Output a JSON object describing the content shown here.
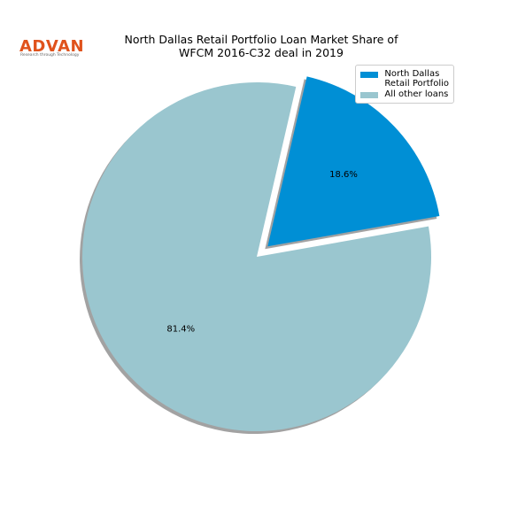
{
  "logo": {
    "name": "ADVAN",
    "tagline": "Research through Technology"
  },
  "chart_data": {
    "type": "pie",
    "title": "North Dallas Retail Portfolio Loan Market Share of\nWFCM 2016-C32 deal in 2019",
    "categories": [
      "North Dallas\nRetail Portfolio",
      "All other loans"
    ],
    "values": [
      18.6,
      81.4
    ],
    "value_labels": [
      "18.6%",
      "81.4%"
    ],
    "colors": [
      "#008fd5",
      "#9ac6cf"
    ],
    "legend": "upper right"
  }
}
